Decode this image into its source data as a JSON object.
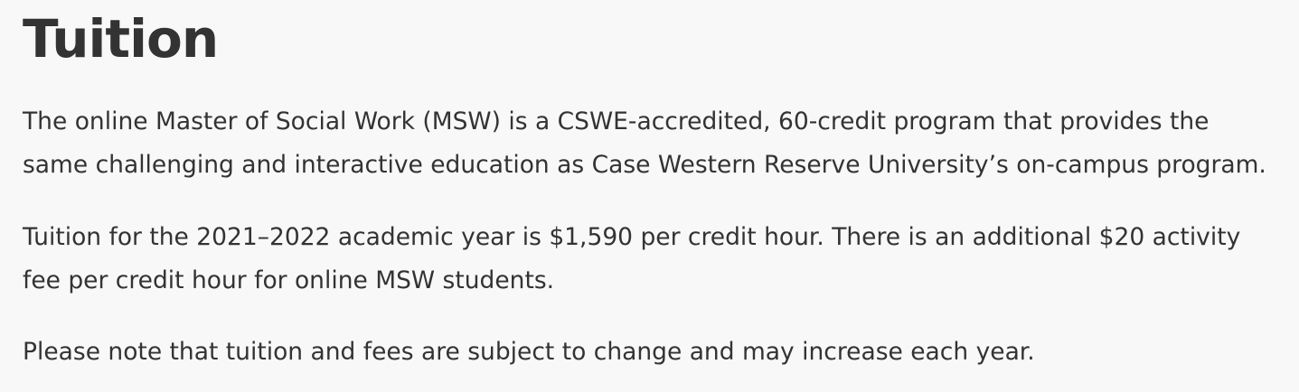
{
  "heading": "Tuition",
  "paragraphs": [
    {
      "lines": [
        "The online Master of Social Work (MSW) is a CSWE-accredited, 60-credit program that provides the",
        "same challenging and interactive education as Case Western Reserve University’s on-campus program."
      ]
    },
    {
      "lines": [
        "Tuition for the 2021–2022 academic year is $1,590 per credit hour. There is an additional $20 activity",
        "fee per credit hour for online MSW students."
      ]
    },
    {
      "lines": [
        "Please note that tuition and fees are subject to change and may increase each year."
      ]
    }
  ]
}
